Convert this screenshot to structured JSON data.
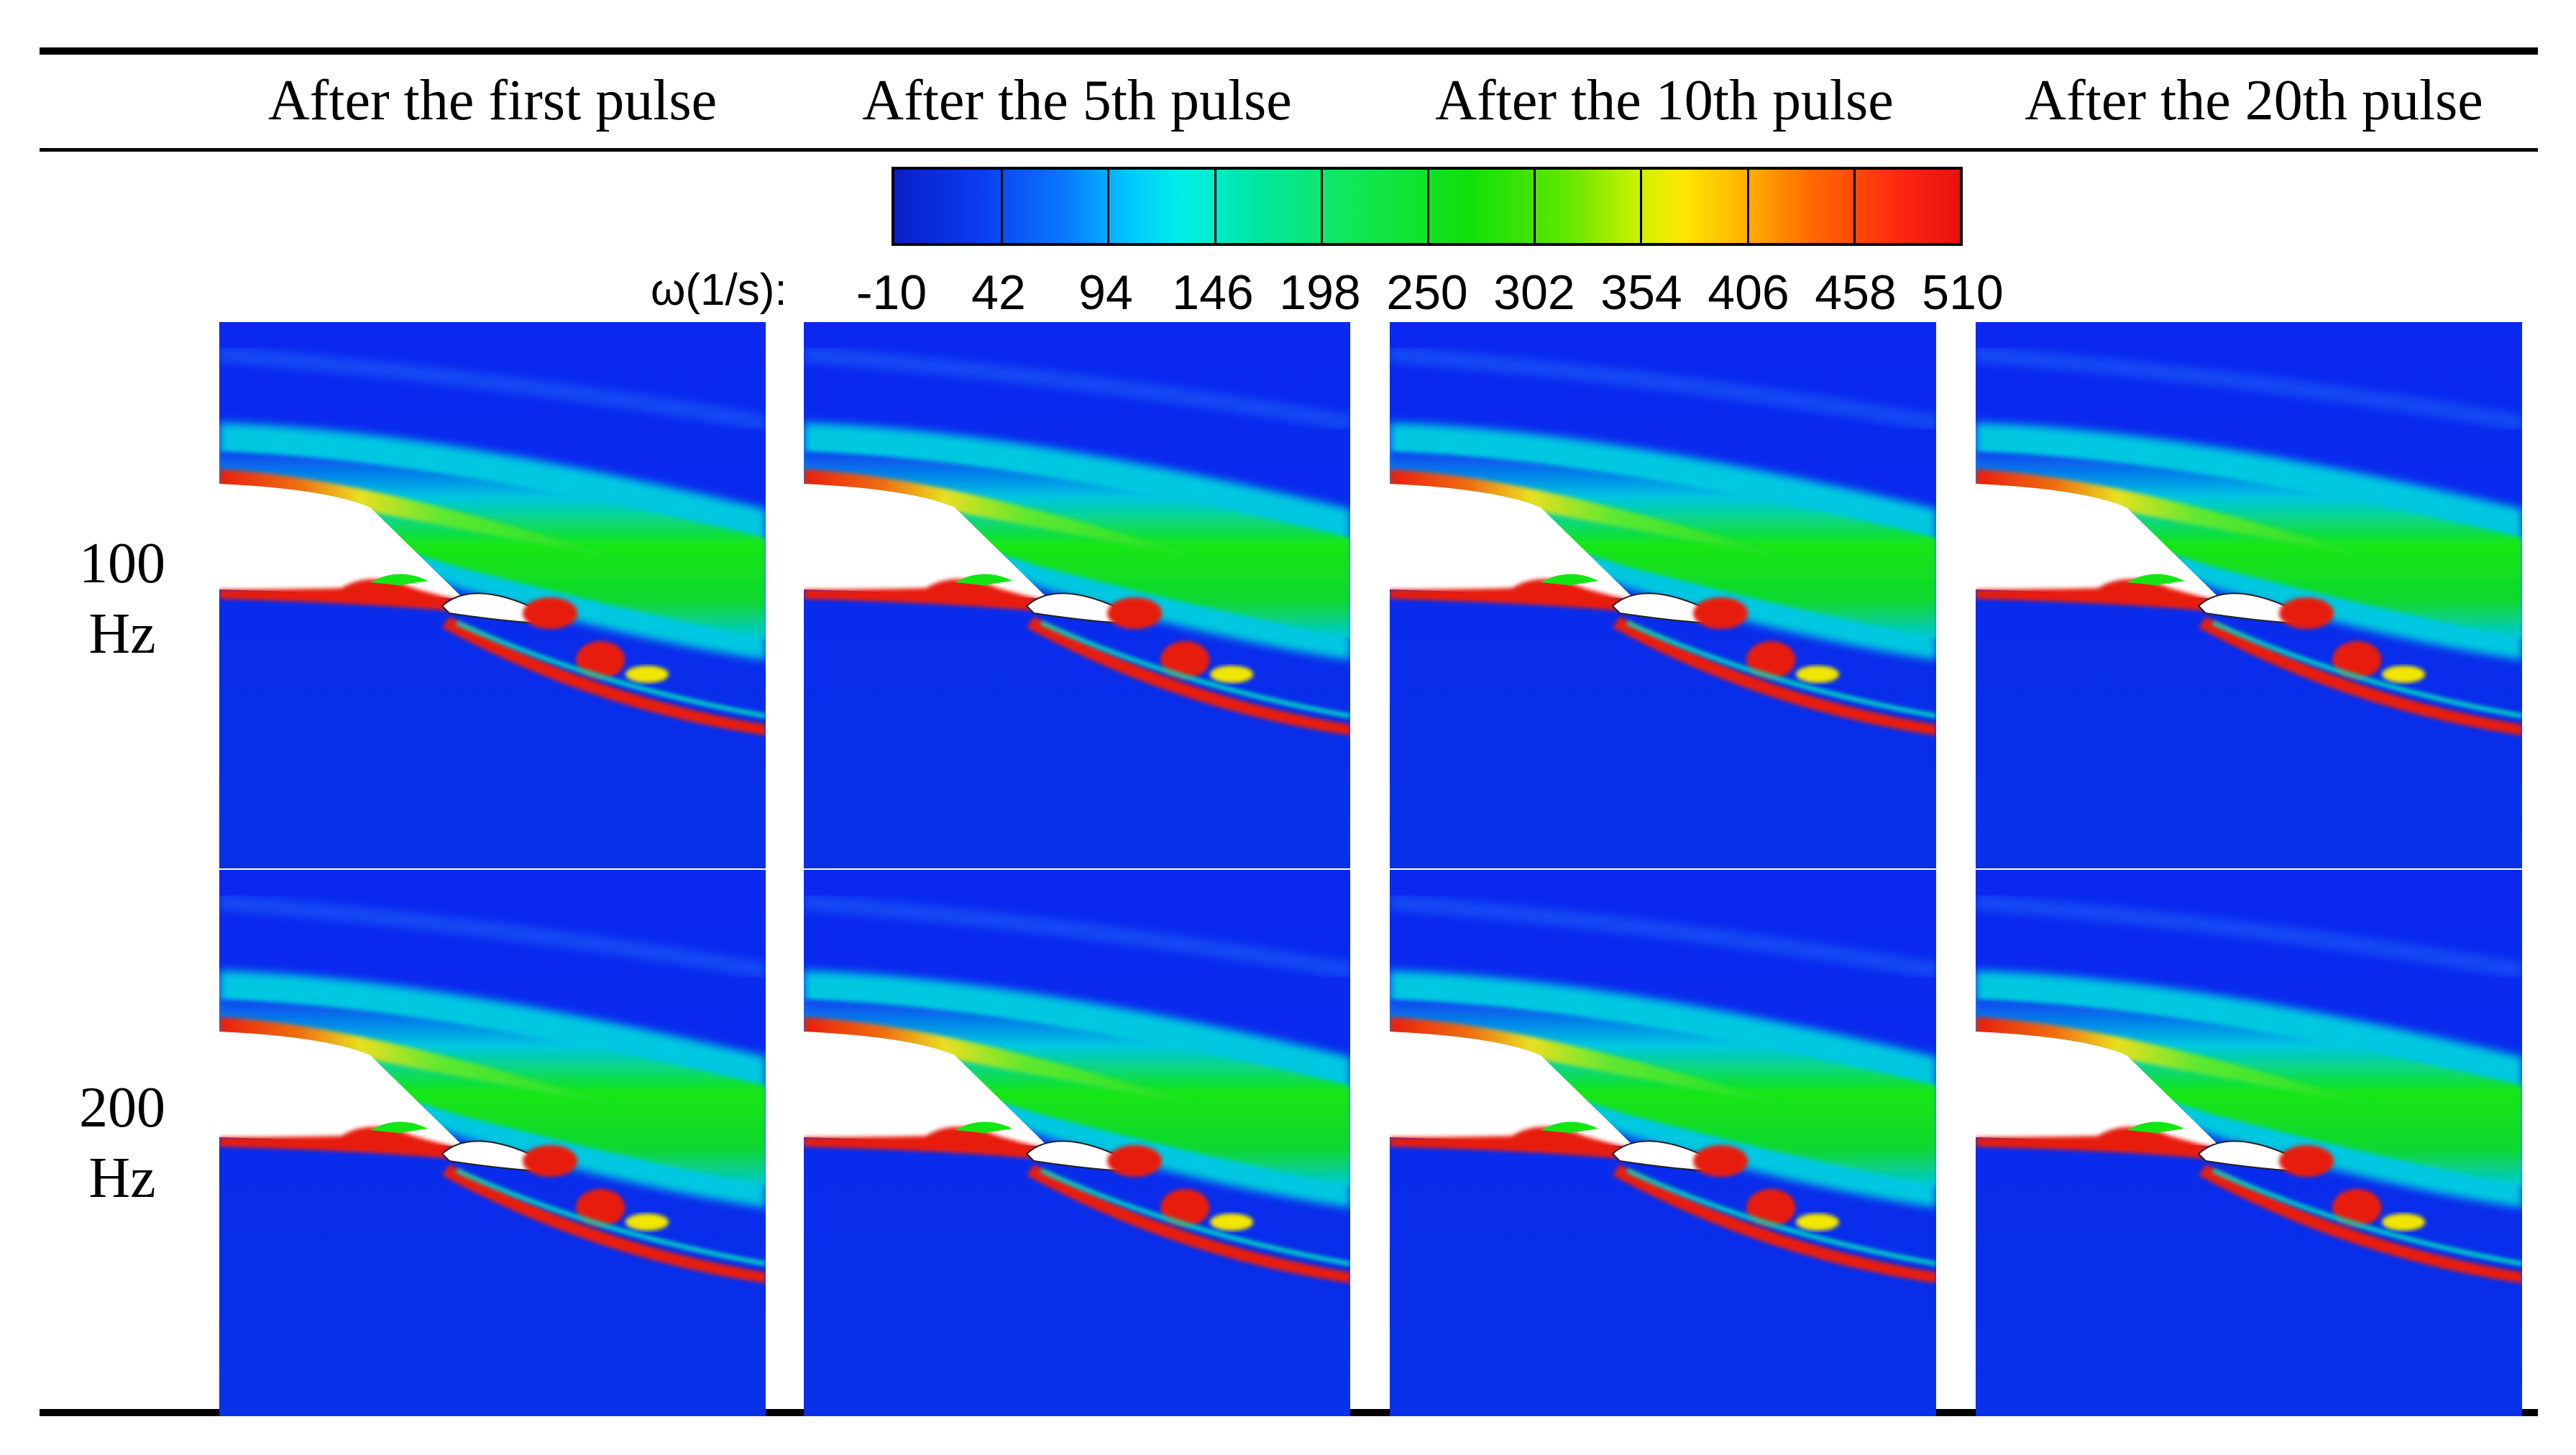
{
  "figure": {
    "column_headers": [
      "After the first pulse",
      "After the 5th pulse",
      "After the 10th pulse",
      "After the 20th pulse"
    ],
    "row_labels": [
      {
        "line1": "100",
        "line2": "Hz"
      },
      {
        "line1": "200",
        "line2": "Hz"
      }
    ],
    "colorbar": {
      "title": "ω(1/s):",
      "labels": [
        "-10",
        "42",
        "94",
        "146",
        "198",
        "250",
        "302",
        "354",
        "406",
        "458",
        "510"
      ]
    },
    "colors": {
      "background_flow": "#0a28f0",
      "shear_green": "#14e614",
      "shear_cyan": "#00d2c8",
      "core_red": "#f01e0a",
      "core_yellow": "#f0e600",
      "body_white": "#ffffff"
    }
  }
}
